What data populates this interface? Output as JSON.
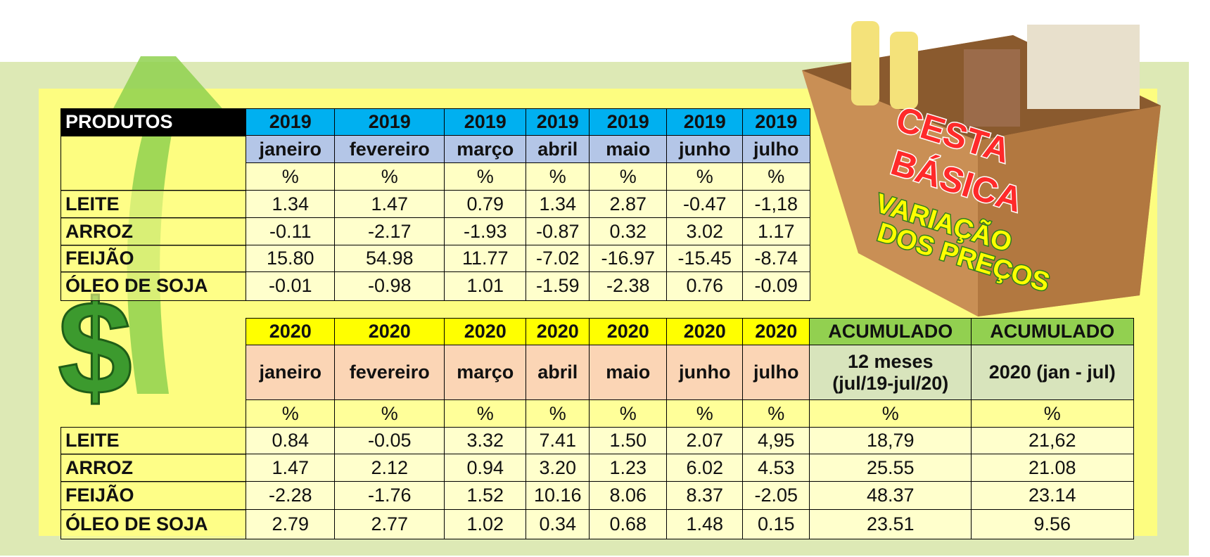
{
  "table_2019": {
    "years": [
      "PRODUTOS",
      "2019",
      "2019",
      "2019",
      "2019",
      "2019",
      "2019",
      "2019"
    ],
    "months": [
      "janeiro",
      "fevereiro",
      "março",
      "abril",
      "maio",
      "junho",
      "julho"
    ],
    "units": [
      "%",
      "%",
      "%",
      "%",
      "%",
      "%",
      "%"
    ],
    "rows": [
      [
        "LEITE",
        "1.34",
        "1.47",
        "0.79",
        "1.34",
        "2.87",
        "-0.47",
        "-1,18"
      ],
      [
        "ARROZ",
        "-0.11",
        "-2.17",
        "-1.93",
        "-0.87",
        "0.32",
        "3.02",
        "1.17"
      ],
      [
        "FEIJÃO",
        "15.80",
        "54.98",
        "11.77",
        "-7.02",
        "-16.97",
        "-15.45",
        "-8.74"
      ],
      [
        "ÓLEO DE SOJA",
        "-0.01",
        "-0.98",
        "1.01",
        "-1.59",
        "-2.38",
        "0.76",
        "-0.09"
      ]
    ]
  },
  "table_2020": {
    "years": [
      "2020",
      "2020",
      "2020",
      "2020",
      "2020",
      "2020",
      "2020",
      "ACUMULADO",
      "ACUMULADO"
    ],
    "months": [
      [
        "janeiro"
      ],
      [
        "fevereiro"
      ],
      [
        "março"
      ],
      [
        "abril"
      ],
      [
        "maio"
      ],
      [
        "junho"
      ],
      [
        "julho"
      ],
      [
        "12 meses",
        "(jul/19-jul/20)"
      ],
      [
        "2020 (jan - jul)"
      ]
    ],
    "units": [
      "%",
      "%",
      "%",
      "%",
      "%",
      "%",
      "%",
      "%",
      "%"
    ],
    "rows": [
      [
        "LEITE",
        "0.84",
        "-0.05",
        "3.32",
        "7.41",
        "1.50",
        "2.07",
        "4,95",
        "18,79",
        "21,62"
      ],
      [
        "ARROZ",
        "1.47",
        "2.12",
        "0.94",
        "3.20",
        "1.23",
        "6.02",
        "4.53",
        "25.55",
        "21.08"
      ],
      [
        "FEIJÃO",
        "-2.28",
        "-1.76",
        "1.52",
        "10.16",
        "8.06",
        "8.37",
        "-2.05",
        "48.37",
        "23.14"
      ],
      [
        "ÓLEO DE SOJA",
        "2.79",
        "2.77",
        "1.02",
        "0.34",
        "0.68",
        "1.48",
        "0.15",
        "23.51",
        "9.56"
      ]
    ]
  },
  "badge": {
    "lines": [
      "CESTA",
      "BÁSICA",
      "VARIAÇÃO",
      "DOS PREÇOS"
    ]
  },
  "dollar_sign": "$"
}
